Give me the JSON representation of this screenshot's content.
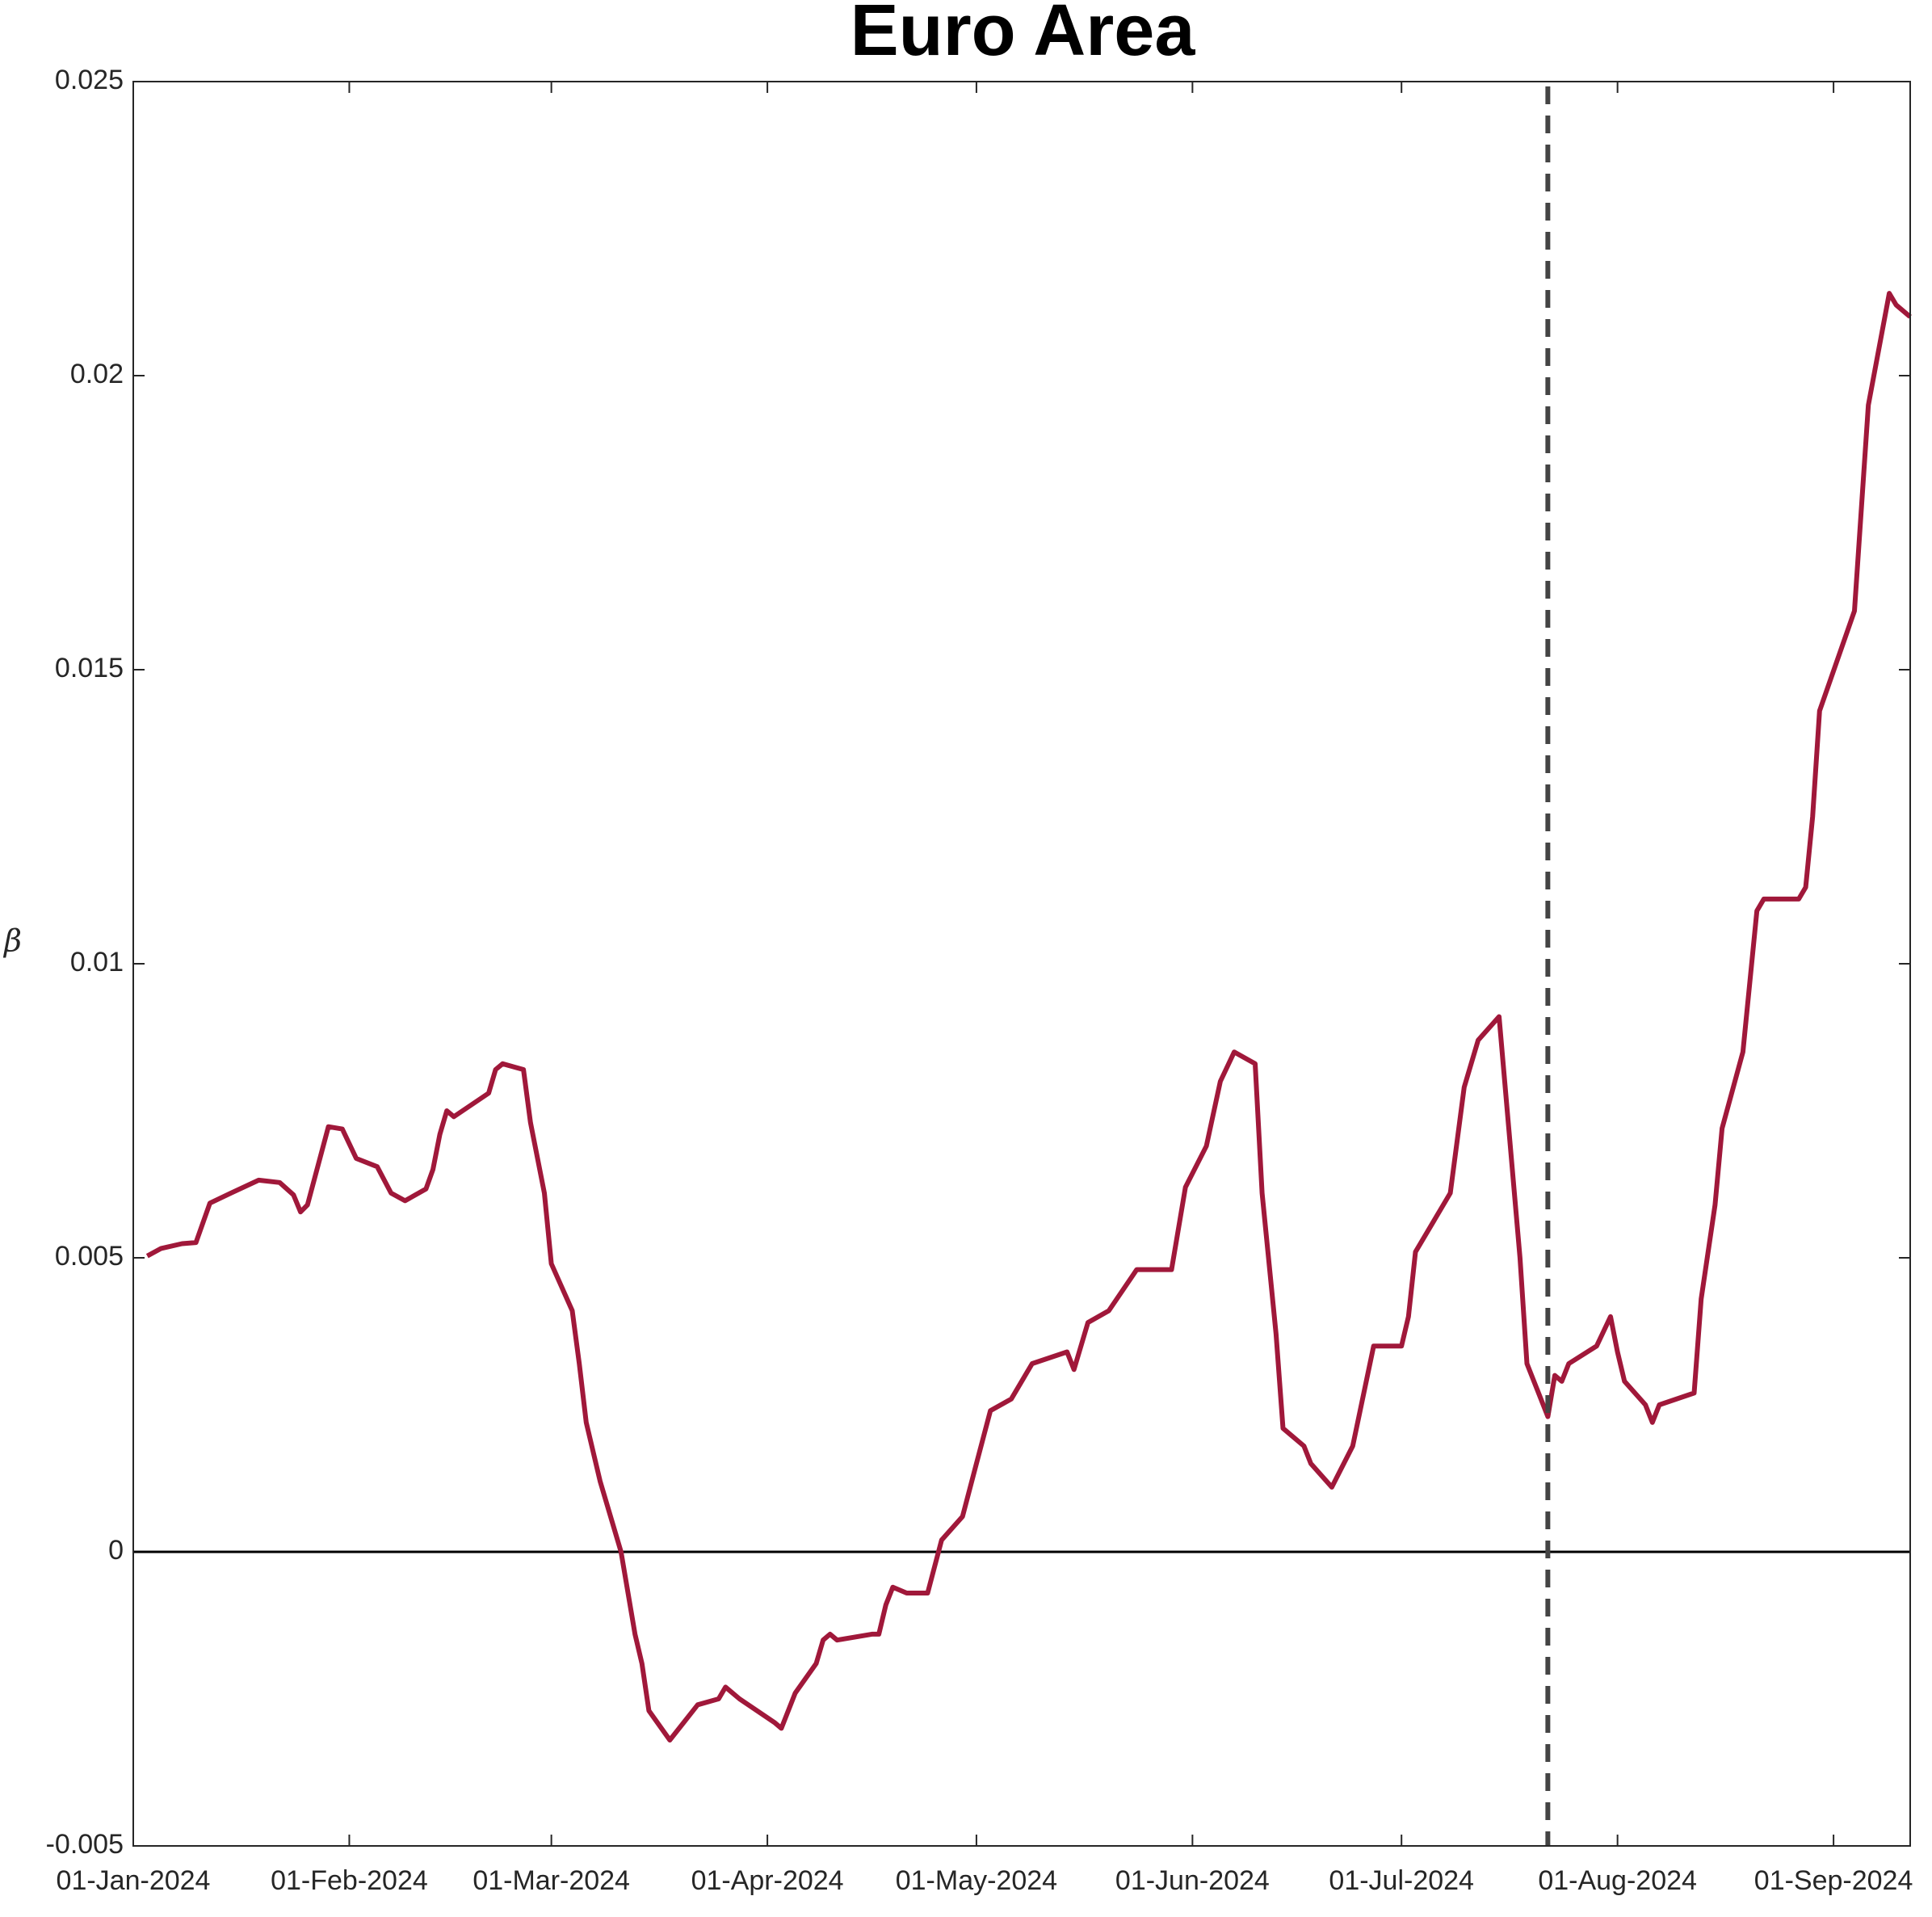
{
  "chart_data": {
    "type": "line",
    "title": "Euro Area",
    "y_label": "β",
    "x": [
      "2024-01-03",
      "2024-01-05",
      "2024-01-08",
      "2024-01-10",
      "2024-01-12",
      "2024-01-15",
      "2024-01-19",
      "2024-01-22",
      "2024-01-24",
      "2024-01-25",
      "2024-01-26",
      "2024-01-29",
      "2024-01-31",
      "2024-02-02",
      "2024-02-05",
      "2024-02-07",
      "2024-02-09",
      "2024-02-12",
      "2024-02-13",
      "2024-02-14",
      "2024-02-15",
      "2024-02-16",
      "2024-02-21",
      "2024-02-22",
      "2024-02-23",
      "2024-02-26",
      "2024-02-27",
      "2024-02-29",
      "2024-03-01",
      "2024-03-04",
      "2024-03-05",
      "2024-03-06",
      "2024-03-08",
      "2024-03-11",
      "2024-03-13",
      "2024-03-14",
      "2024-03-15",
      "2024-03-18",
      "2024-03-20",
      "2024-03-22",
      "2024-03-25",
      "2024-03-26",
      "2024-03-28",
      "2024-04-02",
      "2024-04-03",
      "2024-04-05",
      "2024-04-08",
      "2024-04-09",
      "2024-04-10",
      "2024-04-11",
      "2024-04-16",
      "2024-04-17",
      "2024-04-18",
      "2024-04-19",
      "2024-04-21",
      "2024-04-24",
      "2024-04-26",
      "2024-04-29",
      "2024-05-01",
      "2024-05-03",
      "2024-05-06",
      "2024-05-09",
      "2024-05-14",
      "2024-05-15",
      "2024-05-17",
      "2024-05-20",
      "2024-05-24",
      "2024-05-29",
      "2024-05-31",
      "2024-06-03",
      "2024-06-05",
      "2024-06-07",
      "2024-06-10",
      "2024-06-11",
      "2024-06-13",
      "2024-06-14",
      "2024-06-17",
      "2024-06-18",
      "2024-06-21",
      "2024-06-24",
      "2024-06-27",
      "2024-07-01",
      "2024-07-02",
      "2024-07-03",
      "2024-07-08",
      "2024-07-10",
      "2024-07-12",
      "2024-07-15",
      "2024-07-18",
      "2024-07-19",
      "2024-07-22",
      "2024-07-23",
      "2024-07-24",
      "2024-07-25",
      "2024-07-29",
      "2024-07-31",
      "2024-08-01",
      "2024-08-02",
      "2024-08-05",
      "2024-08-06",
      "2024-08-07",
      "2024-08-12",
      "2024-08-13",
      "2024-08-15",
      "2024-08-16",
      "2024-08-19",
      "2024-08-21",
      "2024-08-22",
      "2024-08-27",
      "2024-08-28",
      "2024-08-29",
      "2024-08-30",
      "2024-09-04",
      "2024-09-06",
      "2024-09-09",
      "2024-09-10",
      "2024-09-12"
    ],
    "series": [
      {
        "color": "#a0183a",
        "values": [
          0.00503,
          0.00516,
          0.00524,
          0.00526,
          0.00593,
          0.0061,
          0.00632,
          0.00628,
          0.00607,
          0.00578,
          0.0059,
          0.00723,
          0.00719,
          0.00669,
          0.00655,
          0.0061,
          0.00597,
          0.00617,
          0.0065,
          0.0071,
          0.0075,
          0.0074,
          0.0078,
          0.0082,
          0.0083,
          0.0082,
          0.0073,
          0.0061,
          0.0049,
          0.0041,
          0.0032,
          0.0022,
          0.0012,
          0.0,
          -0.0014,
          -0.0019,
          -0.0027,
          -0.0032,
          -0.0029,
          -0.0026,
          -0.0025,
          -0.0023,
          -0.0025,
          -0.0029,
          -0.003,
          -0.0024,
          -0.0019,
          -0.0015,
          -0.0014,
          -0.0015,
          -0.0014,
          -0.0014,
          -0.0009,
          -0.0006,
          -0.0007,
          -0.0007,
          0.0002,
          0.0006,
          0.0015,
          0.0024,
          0.0026,
          0.0032,
          0.0034,
          0.0031,
          0.0039,
          0.0041,
          0.0048,
          0.0048,
          0.0062,
          0.0069,
          0.008,
          0.0085,
          0.0083,
          0.0061,
          0.0037,
          0.0021,
          0.0018,
          0.0015,
          0.0011,
          0.0018,
          0.0035,
          0.0035,
          0.004,
          0.0051,
          0.0061,
          0.0079,
          0.0087,
          0.0091,
          0.005,
          0.0032,
          0.0023,
          0.003,
          0.0029,
          0.0032,
          0.0035,
          0.004,
          0.0034,
          0.0029,
          0.0025,
          0.0022,
          0.0025,
          0.0027,
          0.0043,
          0.0059,
          0.0072,
          0.0085,
          0.0109,
          0.0111,
          0.0111,
          0.0113,
          0.0125,
          0.0143,
          0.016,
          0.0195,
          0.0214,
          0.0212,
          0.021
        ]
      }
    ],
    "xlim": [
      "2024-01-01",
      "2024-09-12"
    ],
    "xticks": [
      {
        "value": "2024-01-01",
        "label": "01-Jan-2024"
      },
      {
        "value": "2024-02-01",
        "label": "01-Feb-2024"
      },
      {
        "value": "2024-03-01",
        "label": "01-Mar-2024"
      },
      {
        "value": "2024-04-01",
        "label": "01-Apr-2024"
      },
      {
        "value": "2024-05-01",
        "label": "01-May-2024"
      },
      {
        "value": "2024-06-01",
        "label": "01-Jun-2024"
      },
      {
        "value": "2024-07-01",
        "label": "01-Jul-2024"
      },
      {
        "value": "2024-08-01",
        "label": "01-Aug-2024"
      },
      {
        "value": "2024-09-01",
        "label": "01-Sep-2024"
      }
    ],
    "ylim": [
      -0.005,
      0.025
    ],
    "yticks": [
      -0.005,
      0,
      0.005,
      0.01,
      0.015,
      0.02,
      0.025
    ],
    "hline": 0,
    "vline": "2024-07-22",
    "grid": false
  }
}
